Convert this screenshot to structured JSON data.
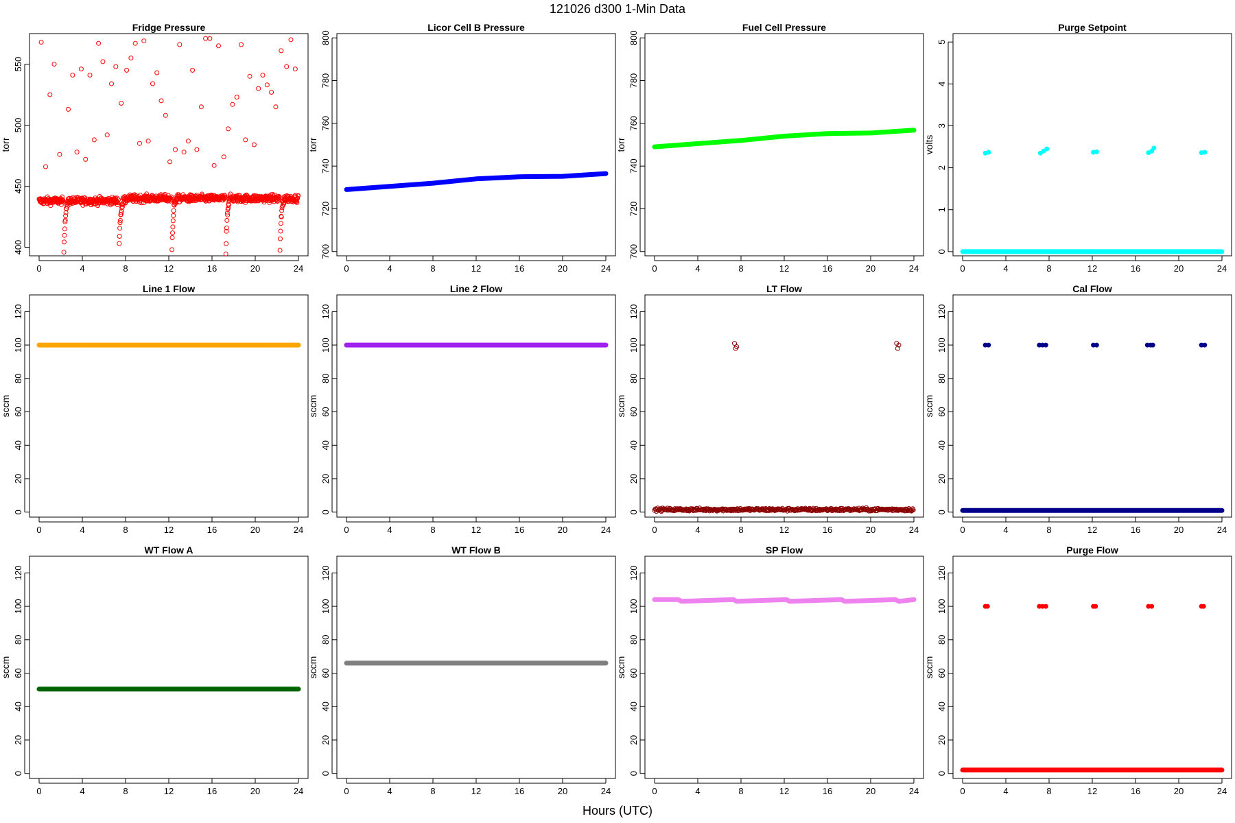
{
  "figure": {
    "title": "121026   d300   1-Min Data",
    "xlabel": "Hours (UTC)"
  },
  "chart_data": [
    {
      "type": "scatter",
      "title": "Fridge Pressure",
      "ylabel": "torr",
      "xlim": [
        0,
        24
      ],
      "xticks": [
        0,
        4,
        8,
        12,
        16,
        20,
        24
      ],
      "ylim": [
        393,
        575
      ],
      "yticks": [
        400,
        450,
        500,
        550
      ],
      "color": "#ff0000",
      "marker": "open-circle",
      "series": [
        {
          "x": [
            0,
            2,
            2.3,
            2.5,
            3,
            6,
            7,
            7.4,
            7.8,
            8.2,
            10,
            11,
            12,
            12.3,
            12.8,
            14,
            16,
            17,
            17.3,
            17.8,
            18.2,
            20,
            22,
            22.3,
            22.8,
            24
          ],
          "y": [
            438,
            437,
            395,
            420,
            437,
            438,
            437,
            400,
            420,
            440,
            441,
            443,
            441,
            405,
            440,
            442,
            442,
            440,
            400,
            428,
            442,
            440,
            438,
            402,
            440,
            442
          ]
        },
        {
          "x": [
            0.2,
            0.6,
            1.0,
            1.4,
            1.9,
            2.7,
            3.1,
            3.5,
            3.9,
            4.3,
            4.7,
            5.1,
            5.5,
            5.9,
            6.3,
            6.7,
            7.1,
            7.6,
            8.1,
            8.5,
            8.9,
            9.3,
            9.7,
            10.1,
            10.5,
            10.9,
            11.3,
            11.7,
            12.1,
            12.6,
            13.0,
            13.4,
            13.8,
            14.2,
            14.6,
            15.0,
            15.4,
            15.8,
            16.2,
            16.6,
            17.1,
            17.5,
            17.9,
            18.3,
            18.7,
            19.1,
            19.5,
            19.9,
            20.3,
            20.7,
            21.1,
            21.5,
            21.9,
            22.4,
            22.9,
            23.3,
            23.7
          ],
          "y": [
            568,
            466,
            525,
            550,
            476,
            513,
            541,
            478,
            546,
            472,
            541,
            488,
            567,
            552,
            492,
            534,
            548,
            518,
            545,
            555,
            567,
            485,
            569,
            487,
            534,
            543,
            520,
            508,
            470,
            480,
            566,
            478,
            487,
            545,
            480,
            515,
            571,
            571,
            467,
            565,
            474,
            497,
            517,
            523,
            566,
            488,
            540,
            484,
            530,
            541,
            533,
            527,
            515,
            561,
            548,
            570,
            546
          ]
        }
      ]
    },
    {
      "type": "scatter",
      "title": "Licor Cell B Pressure",
      "ylabel": "torr",
      "xlim": [
        0,
        24
      ],
      "xticks": [
        0,
        4,
        8,
        12,
        16,
        20,
        24
      ],
      "ylim": [
        698,
        802
      ],
      "yticks": [
        700,
        720,
        740,
        760,
        780,
        800
      ],
      "color": "#0000ff",
      "marker": "filled-circle",
      "series": [
        {
          "x": [
            0,
            4,
            8,
            12,
            16,
            20,
            24
          ],
          "y": [
            729,
            730.5,
            732,
            734,
            735,
            735.2,
            736.5
          ]
        }
      ]
    },
    {
      "type": "scatter",
      "title": "Fuel Cell Pressure",
      "ylabel": "torr",
      "xlim": [
        0,
        24
      ],
      "xticks": [
        0,
        4,
        8,
        12,
        16,
        20,
        24
      ],
      "ylim": [
        698,
        802
      ],
      "yticks": [
        700,
        720,
        740,
        760,
        780,
        800
      ],
      "color": "#00ff00",
      "marker": "filled-circle",
      "series": [
        {
          "x": [
            0,
            4,
            8,
            12,
            16,
            20,
            24
          ],
          "y": [
            749,
            750.5,
            752,
            754,
            755.2,
            755.5,
            756.8
          ]
        }
      ]
    },
    {
      "type": "scatter",
      "title": "Purge Setpoint",
      "ylabel": "volts",
      "xlim": [
        0,
        24
      ],
      "xticks": [
        0,
        4,
        8,
        12,
        16,
        20,
        24
      ],
      "ylim": [
        -0.1,
        5.2
      ],
      "yticks": [
        0,
        1,
        2,
        3,
        4,
        5
      ],
      "color": "#00ffff",
      "marker": "filled-circle",
      "series": [
        {
          "x": [
            0,
            24
          ],
          "y": [
            0,
            0
          ]
        },
        {
          "x": [
            2.1,
            2.4,
            7.2,
            7.5,
            7.8,
            12.1,
            12.4,
            17.2,
            17.5,
            17.7,
            22.1,
            22.4
          ],
          "y": [
            2.35,
            2.37,
            2.35,
            2.4,
            2.45,
            2.37,
            2.38,
            2.36,
            2.4,
            2.47,
            2.36,
            2.37
          ]
        }
      ]
    },
    {
      "type": "scatter",
      "title": "Line 1 Flow",
      "ylabel": "sccm",
      "xlim": [
        0,
        24
      ],
      "xticks": [
        0,
        4,
        8,
        12,
        16,
        20,
        24
      ],
      "ylim": [
        -3,
        130
      ],
      "yticks": [
        0,
        20,
        40,
        60,
        80,
        100,
        120
      ],
      "color": "#ffa500",
      "marker": "filled-circle",
      "series": [
        {
          "x": [
            0,
            24
          ],
          "y": [
            100,
            100
          ]
        }
      ]
    },
    {
      "type": "scatter",
      "title": "Line 2 Flow",
      "ylabel": "sccm",
      "xlim": [
        0,
        24
      ],
      "xticks": [
        0,
        4,
        8,
        12,
        16,
        20,
        24
      ],
      "ylim": [
        -3,
        130
      ],
      "yticks": [
        0,
        20,
        40,
        60,
        80,
        100,
        120
      ],
      "color": "#a020f0",
      "marker": "filled-circle",
      "series": [
        {
          "x": [
            0,
            24
          ],
          "y": [
            100,
            100
          ]
        }
      ]
    },
    {
      "type": "scatter",
      "title": "LT Flow",
      "ylabel": "sccm",
      "xlim": [
        0,
        24
      ],
      "xticks": [
        0,
        4,
        8,
        12,
        16,
        20,
        24
      ],
      "ylim": [
        -3,
        130
      ],
      "yticks": [
        0,
        20,
        40,
        60,
        80,
        100,
        120
      ],
      "color": "#8b0000",
      "marker": "open-circle",
      "series": [
        {
          "x": [
            0,
            24
          ],
          "y": [
            1.5,
            1.5
          ]
        },
        {
          "x": [
            7.4,
            7.5,
            7.6,
            22.4,
            22.5,
            22.6
          ],
          "y": [
            101,
            98,
            99,
            101,
            98,
            100
          ]
        }
      ]
    },
    {
      "type": "scatter",
      "title": "Cal Flow",
      "ylabel": "sccm",
      "xlim": [
        0,
        24
      ],
      "xticks": [
        0,
        4,
        8,
        12,
        16,
        20,
        24
      ],
      "ylim": [
        -3,
        130
      ],
      "yticks": [
        0,
        20,
        40,
        60,
        80,
        100,
        120
      ],
      "color": "#00008b",
      "marker": "filled-circle",
      "series": [
        {
          "x": [
            0,
            24
          ],
          "y": [
            1,
            1
          ]
        },
        {
          "x": [
            2.1,
            2.4,
            7.1,
            7.4,
            7.7,
            12.1,
            12.4,
            17.1,
            17.4,
            17.6,
            22.1,
            22.4
          ],
          "y": [
            100,
            100,
            100,
            100,
            100,
            100,
            100,
            100,
            100,
            100,
            100,
            100
          ]
        }
      ]
    },
    {
      "type": "scatter",
      "title": "WT Flow A",
      "ylabel": "sccm",
      "xlim": [
        0,
        24
      ],
      "xticks": [
        0,
        4,
        8,
        12,
        16,
        20,
        24
      ],
      "ylim": [
        -3,
        130
      ],
      "yticks": [
        0,
        20,
        40,
        60,
        80,
        100,
        120
      ],
      "color": "#006400",
      "marker": "filled-circle",
      "series": [
        {
          "x": [
            0,
            24
          ],
          "y": [
            50.5,
            50.5
          ]
        }
      ]
    },
    {
      "type": "scatter",
      "title": "WT Flow B",
      "ylabel": "sccm",
      "xlim": [
        0,
        24
      ],
      "xticks": [
        0,
        4,
        8,
        12,
        16,
        20,
        24
      ],
      "ylim": [
        -3,
        130
      ],
      "yticks": [
        0,
        20,
        40,
        60,
        80,
        100,
        120
      ],
      "color": "#808080",
      "marker": "filled-circle",
      "series": [
        {
          "x": [
            0,
            24
          ],
          "y": [
            66,
            66
          ]
        }
      ]
    },
    {
      "type": "scatter",
      "title": "SP Flow",
      "ylabel": "sccm",
      "xlim": [
        0,
        24
      ],
      "xticks": [
        0,
        4,
        8,
        12,
        16,
        20,
        24
      ],
      "ylim": [
        -3,
        130
      ],
      "yticks": [
        0,
        20,
        40,
        60,
        80,
        100,
        120
      ],
      "color": "#ee82ee",
      "marker": "filled-circle",
      "series": [
        {
          "x": [
            0,
            2.2,
            2.5,
            7.3,
            7.6,
            12.2,
            12.5,
            17.3,
            17.6,
            22.3,
            22.6,
            24
          ],
          "y": [
            104,
            104,
            103,
            104,
            103,
            104,
            103,
            104,
            103,
            104,
            103,
            104
          ]
        }
      ]
    },
    {
      "type": "scatter",
      "title": "Purge Flow",
      "ylabel": "sccm",
      "xlim": [
        0,
        24
      ],
      "xticks": [
        0,
        4,
        8,
        12,
        16,
        20,
        24
      ],
      "ylim": [
        -3,
        130
      ],
      "yticks": [
        0,
        20,
        40,
        60,
        80,
        100,
        120
      ],
      "color": "#ff0000",
      "marker": "filled-circle",
      "series": [
        {
          "x": [
            0,
            24
          ],
          "y": [
            2,
            2
          ]
        },
        {
          "x": [
            2.1,
            2.3,
            7.1,
            7.4,
            7.7,
            12.1,
            12.3,
            17.2,
            17.5,
            22.1,
            22.3
          ],
          "y": [
            100,
            100,
            100,
            100,
            100,
            100,
            100,
            100,
            100,
            100,
            100
          ]
        }
      ]
    }
  ]
}
